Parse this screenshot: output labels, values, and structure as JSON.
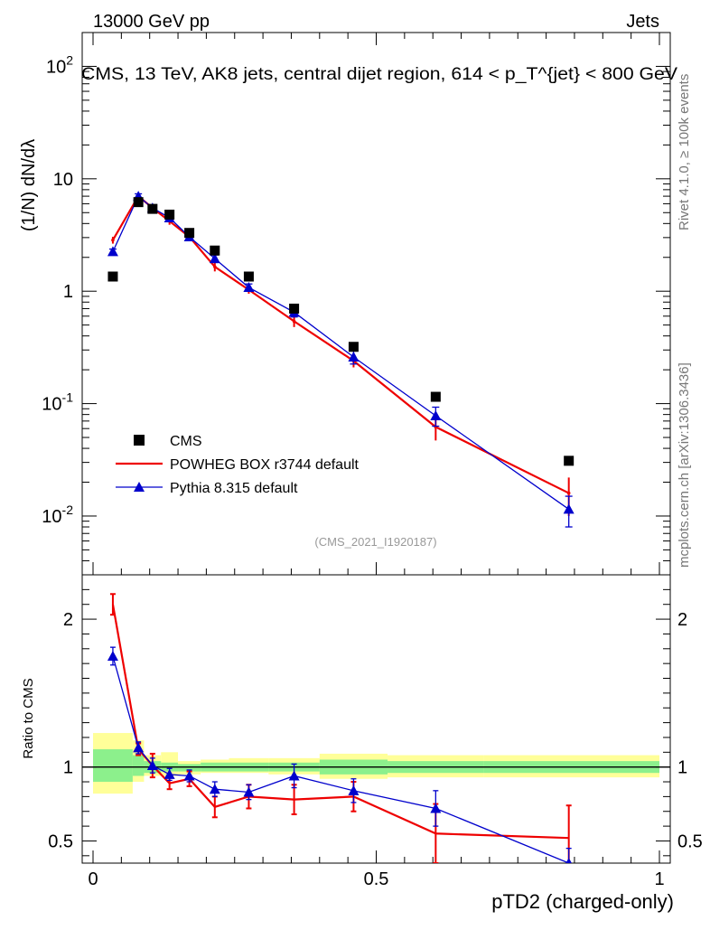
{
  "header": {
    "energy": "13000 GeV pp",
    "category": "Jets",
    "title": "CMS, 13 TeV, AK8 jets, central dijet region, 614 < p_T^{jet} < 800 GeV",
    "rivet": "Rivet 4.1.0, ≥ 100k events",
    "source": "mcplots.cern.ch [arXiv:1306.3436]",
    "analysis": "(CMS_2021_I1920187)"
  },
  "colors": {
    "cms": "#000000",
    "powheg": "#ee0000",
    "pythia": "#0000cc",
    "band_inner": "#8cf08c",
    "band_outer": "#ffff99"
  },
  "chart_data": [
    {
      "name": "main",
      "type": "line",
      "yscale": "log",
      "ylabel": "(1/N) dN/dλ",
      "xlim": [
        0,
        1
      ],
      "ylim": [
        0.003,
        200
      ],
      "ytick_labels": [
        "10^-2",
        "10^-1",
        "1",
        "10",
        "10^2"
      ],
      "legend_position": "lower-left",
      "x": [
        0.035,
        0.08,
        0.105,
        0.135,
        0.17,
        0.215,
        0.275,
        0.355,
        0.46,
        0.605,
        0.84
      ],
      "series": [
        {
          "name": "CMS",
          "values": [
            1.35,
            6.2,
            5.4,
            4.8,
            3.3,
            2.3,
            1.35,
            0.7,
            0.32,
            0.115,
            0.031
          ]
        },
        {
          "name": "POWHEG BOX r3744 default",
          "values": [
            2.85,
            7.0,
            5.5,
            4.2,
            3.05,
            1.65,
            1.03,
            0.54,
            0.24,
            0.062,
            0.016
          ],
          "errors": [
            0.2,
            0.3,
            0.25,
            0.3,
            0.2,
            0.15,
            0.08,
            0.06,
            0.03,
            0.015,
            0.006
          ]
        },
        {
          "name": "Pythia 8.315 default",
          "values": [
            2.25,
            7.0,
            5.5,
            4.5,
            3.05,
            1.95,
            1.08,
            0.65,
            0.26,
            0.078,
            0.0115
          ],
          "errors": [
            0.12,
            0.35,
            0.25,
            0.25,
            0.18,
            0.15,
            0.08,
            0.06,
            0.035,
            0.015,
            0.0035
          ]
        }
      ]
    },
    {
      "name": "ratio",
      "type": "line",
      "ylabel": "Ratio to CMS",
      "xlabel": "pTD2 (charged-only)",
      "xlim": [
        0,
        1
      ],
      "ylim": [
        0.35,
        2.3
      ],
      "xtick_labels": [
        "0",
        "0.5",
        "1"
      ],
      "ytick_labels": [
        "0.5",
        "1",
        "2"
      ],
      "x": [
        0.035,
        0.08,
        0.105,
        0.135,
        0.17,
        0.215,
        0.275,
        0.355,
        0.46,
        0.605,
        0.84
      ],
      "series": [
        {
          "name": "POWHEG BOX r3744 default",
          "values": [
            2.1,
            1.12,
            1.01,
            0.89,
            0.92,
            0.73,
            0.8,
            0.78,
            0.8,
            0.55,
            0.52
          ],
          "errors": [
            0.07,
            0.04,
            0.08,
            0.04,
            0.05,
            0.07,
            0.08,
            0.1,
            0.1,
            0.2,
            0.22
          ]
        },
        {
          "name": "Pythia 8.315 default",
          "values": [
            1.75,
            1.13,
            1.01,
            0.95,
            0.94,
            0.85,
            0.83,
            0.94,
            0.84,
            0.72,
            0.35
          ],
          "errors": [
            0.06,
            0.04,
            0.05,
            0.04,
            0.04,
            0.05,
            0.05,
            0.08,
            0.08,
            0.12,
            0.1
          ]
        }
      ],
      "uncertainty_bands": [
        {
          "xmin": 0.0,
          "xmax": 0.07,
          "inner": [
            0.9,
            1.12
          ],
          "outer": [
            0.82,
            1.23
          ]
        },
        {
          "xmin": 0.07,
          "xmax": 0.09,
          "inner": [
            0.94,
            1.08
          ],
          "outer": [
            0.9,
            1.18
          ]
        },
        {
          "xmin": 0.09,
          "xmax": 0.12,
          "inner": [
            0.96,
            1.04
          ],
          "outer": [
            0.94,
            1.08
          ]
        },
        {
          "xmin": 0.12,
          "xmax": 0.15,
          "inner": [
            0.97,
            1.03
          ],
          "outer": [
            0.94,
            1.1
          ]
        },
        {
          "xmin": 0.15,
          "xmax": 0.19,
          "inner": [
            0.97,
            1.02
          ],
          "outer": [
            0.95,
            1.04
          ]
        },
        {
          "xmin": 0.19,
          "xmax": 0.24,
          "inner": [
            0.97,
            1.03
          ],
          "outer": [
            0.96,
            1.05
          ]
        },
        {
          "xmin": 0.24,
          "xmax": 0.31,
          "inner": [
            0.97,
            1.03
          ],
          "outer": [
            0.96,
            1.06
          ]
        },
        {
          "xmin": 0.31,
          "xmax": 0.4,
          "inner": [
            0.97,
            1.03
          ],
          "outer": [
            0.95,
            1.06
          ]
        },
        {
          "xmin": 0.4,
          "xmax": 0.52,
          "inner": [
            0.95,
            1.05
          ],
          "outer": [
            0.92,
            1.09
          ]
        },
        {
          "xmin": 0.52,
          "xmax": 0.69,
          "inner": [
            0.96,
            1.04
          ],
          "outer": [
            0.93,
            1.08
          ]
        },
        {
          "xmin": 0.69,
          "xmax": 1.0,
          "inner": [
            0.96,
            1.04
          ],
          "outer": [
            0.93,
            1.08
          ]
        }
      ]
    }
  ],
  "legend": [
    {
      "label": "CMS",
      "marker": "square"
    },
    {
      "label": "POWHEG BOX r3744 default",
      "marker": "line"
    },
    {
      "label": "Pythia 8.315 default",
      "marker": "triangle"
    }
  ]
}
